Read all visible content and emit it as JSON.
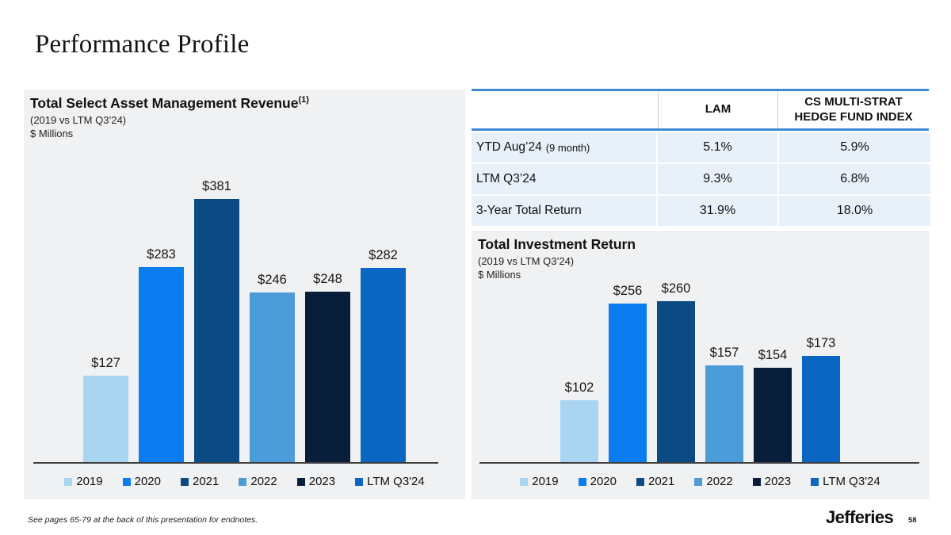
{
  "slide": {
    "title": "Performance Profile",
    "footnote": "See pages 65-79 at the back of this presentation for endnotes.",
    "brand": "Jefferies",
    "page_number": "58"
  },
  "colors": {
    "panel_bg": "#f0f1f2",
    "table_line": "#3e88d8",
    "table_row_bg": "#e8f1fa",
    "axis": "#3d3d3d",
    "series": [
      "#a9d4f2",
      "#0b7bf0",
      "#0c4a84",
      "#4c9cda",
      "#081d3a",
      "#0a66c2"
    ]
  },
  "table": {
    "lam_header": "LAM",
    "cs_header": "CS MULTI-STRAT HEDGE FUND INDEX",
    "rows": [
      {
        "label": "YTD Aug’24",
        "note": "(9 month)",
        "lam": "5.1%",
        "cs": "5.9%"
      },
      {
        "label": "LTM Q3’24",
        "note": "",
        "lam": "9.3%",
        "cs": "6.8%"
      },
      {
        "label": "3-Year Total Return",
        "note": "",
        "lam": "31.9%",
        "cs": "18.0%"
      }
    ]
  },
  "chart_data": [
    {
      "type": "bar",
      "title": "Total Select Asset Management Revenue",
      "title_superscript": "(1)",
      "subtitle": "(2019 vs LTM Q3’24)",
      "units": "$ Millions",
      "categories": [
        "2019",
        "2020",
        "2021",
        "2022",
        "2023",
        "LTM Q3'24"
      ],
      "values": [
        127,
        283,
        381,
        246,
        248,
        282
      ],
      "labels": [
        "$127",
        "$283",
        "$381",
        "$246",
        "$248",
        "$282"
      ],
      "xlabel": "",
      "ylabel": "$ Millions",
      "ylim": [
        0,
        400
      ],
      "grid": false,
      "legend_position": "bottom"
    },
    {
      "type": "bar",
      "title": "Total Investment Return",
      "title_superscript": "",
      "subtitle": "(2019 vs LTM Q3’24)",
      "units": "$ Millions",
      "categories": [
        "2019",
        "2020",
        "2021",
        "2022",
        "2023",
        "LTM Q3'24"
      ],
      "values": [
        102,
        256,
        260,
        157,
        154,
        173
      ],
      "labels": [
        "$102",
        "$256",
        "$260",
        "$157",
        "$154",
        "$173"
      ],
      "xlabel": "",
      "ylabel": "$ Millions",
      "ylim": [
        0,
        280
      ],
      "grid": false,
      "legend_position": "bottom"
    }
  ]
}
